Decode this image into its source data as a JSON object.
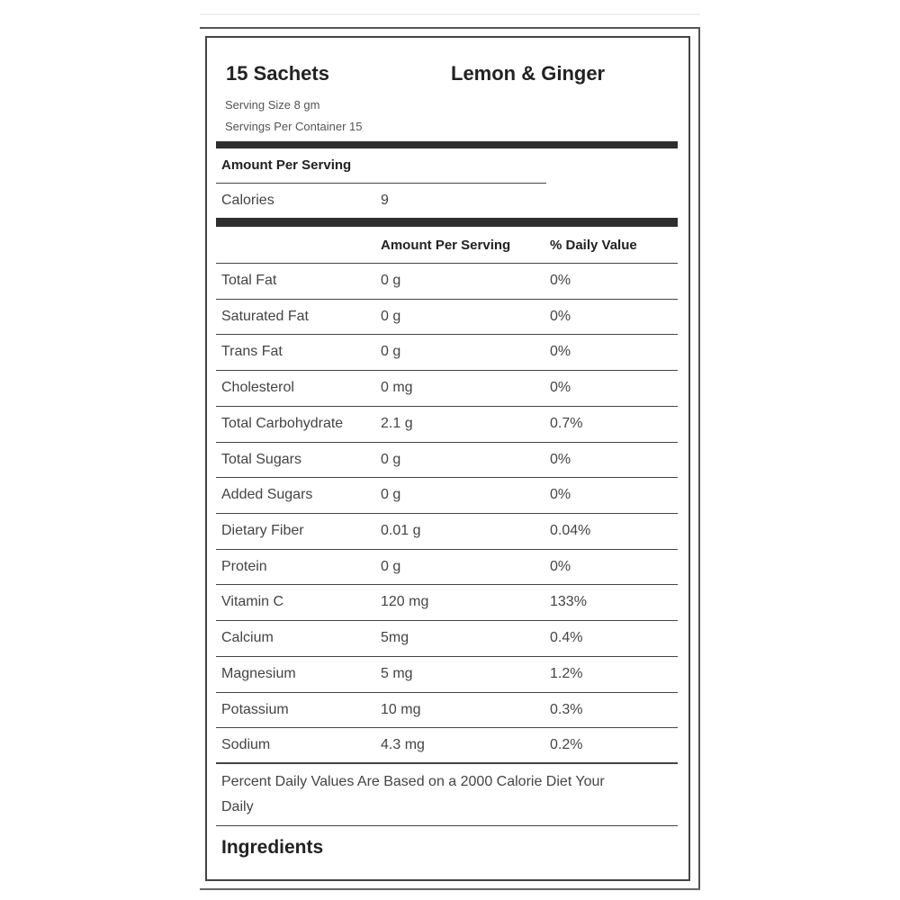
{
  "header": {
    "count_title": "15 Sachets",
    "flavor_title": "Lemon & Ginger",
    "serving_size": "Serving Size 8 gm",
    "servings_per_container": "Servings Per Container 15"
  },
  "calories_section": {
    "heading": "Amount Per Serving",
    "label": "Calories",
    "value": "9"
  },
  "nutrients": {
    "col_amount": "Amount Per Serving",
    "col_daily": "% Daily Value",
    "rows": [
      {
        "name": "Total Fat",
        "amount": "0 g",
        "daily": "0%"
      },
      {
        "name": "Saturated Fat",
        "amount": "0 g",
        "daily": "0%"
      },
      {
        "name": "Trans Fat",
        "amount": "0 g",
        "daily": "0%"
      },
      {
        "name": "Cholesterol",
        "amount": "0 mg",
        "daily": "0%"
      },
      {
        "name": "Total Carbohydrate",
        "amount": "2.1 g",
        "daily": "0.7%"
      },
      {
        "name": "Total Sugars",
        "amount": "0 g",
        "daily": "0%"
      },
      {
        "name": "Added Sugars",
        "amount": "0 g",
        "daily": "0%"
      },
      {
        "name": "Dietary Fiber",
        "amount": "0.01 g",
        "daily": "0.04%"
      },
      {
        "name": "Protein",
        "amount": "0 g",
        "daily": "0%"
      },
      {
        "name": "Vitamin C",
        "amount": "120 mg",
        "daily": "133%"
      },
      {
        "name": "Calcium",
        "amount": "5mg",
        "daily": "0.4%"
      },
      {
        "name": "Magnesium",
        "amount": "5 mg",
        "daily": "1.2%"
      },
      {
        "name": "Potassium",
        "amount": "10 mg",
        "daily": "0.3%"
      },
      {
        "name": "Sodium",
        "amount": "4.3 mg",
        "daily": "0.2%"
      }
    ]
  },
  "footer": {
    "note_line1": "Percent Daily Values Are Based on a 2000 Calorie Diet Your",
    "note_line2": "Daily",
    "ingredients_heading": "Ingredients"
  }
}
